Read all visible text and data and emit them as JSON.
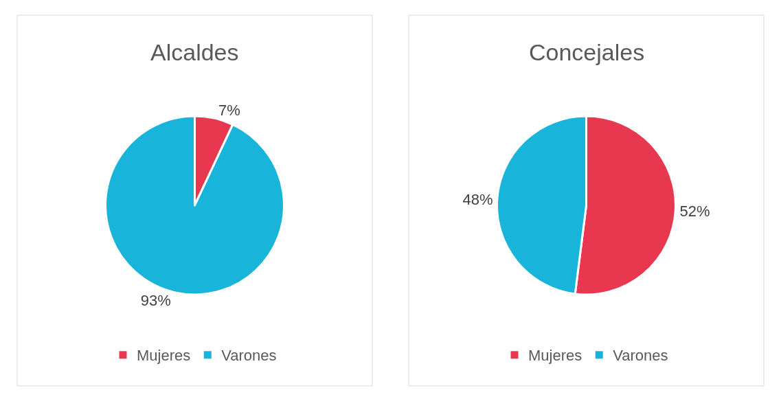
{
  "chart_data": [
    {
      "type": "pie",
      "title": "Alcaldes",
      "categories": [
        "Mujeres",
        "Varones"
      ],
      "values": [
        7,
        93
      ],
      "colors": [
        "#e8384f",
        "#18b4d9"
      ],
      "value_labels": [
        "7%",
        "93%"
      ],
      "legend": "bottom"
    },
    {
      "type": "pie",
      "title": "Concejales",
      "categories": [
        "Mujeres",
        "Varones"
      ],
      "values": [
        52,
        48
      ],
      "colors": [
        "#e8384f",
        "#18b4d9"
      ],
      "value_labels": [
        "52%",
        "48%"
      ],
      "legend": "bottom"
    }
  ]
}
